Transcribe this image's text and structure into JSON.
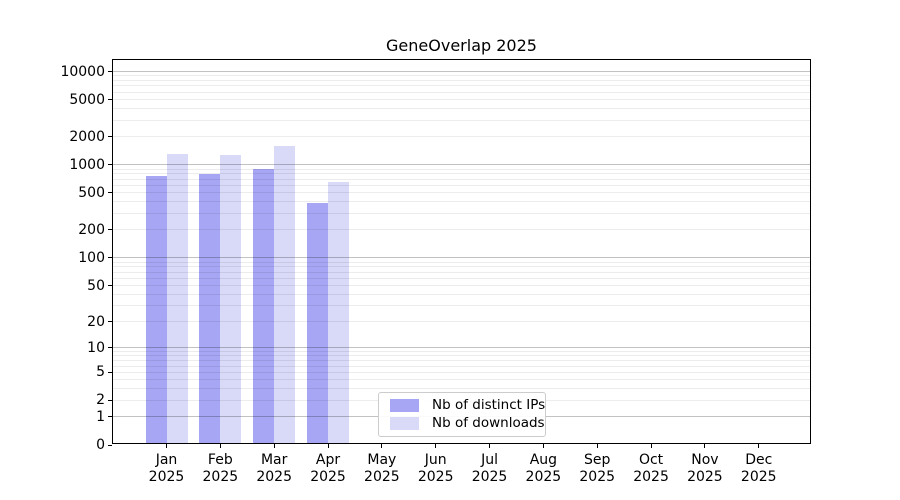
{
  "chart_data": {
    "type": "bar",
    "title": "GeneOverlap 2025",
    "year_label": "2025",
    "categories": [
      "Jan",
      "Feb",
      "Mar",
      "Apr",
      "May",
      "Jun",
      "Jul",
      "Aug",
      "Sep",
      "Oct",
      "Nov",
      "Dec"
    ],
    "series": [
      {
        "name": "Nb of distinct IPs",
        "color": "#a6a6f4",
        "values": [
          730,
          760,
          870,
          375,
          0,
          0,
          0,
          0,
          0,
          0,
          0,
          0
        ]
      },
      {
        "name": "Nb of downloads",
        "color": "#d9d9f8",
        "values": [
          1250,
          1210,
          1510,
          620,
          0,
          0,
          0,
          0,
          0,
          0,
          0,
          0
        ]
      }
    ],
    "y_ticks": [
      0,
      1,
      2,
      5,
      10,
      20,
      50,
      100,
      200,
      500,
      1000,
      2000,
      5000,
      10000
    ],
    "y_major_gridlines": [
      1,
      10,
      100,
      1000,
      10000
    ],
    "y_scale": "log10(value+1)",
    "ylim": [
      0,
      10000
    ],
    "grid": "horizontal major+minor, on",
    "legend_position": "inside bottom-center",
    "colors": {
      "grid_major": "#c2c2c2",
      "grid_minor": "#ececec",
      "axis": "#000000",
      "background": "#ffffff"
    }
  }
}
